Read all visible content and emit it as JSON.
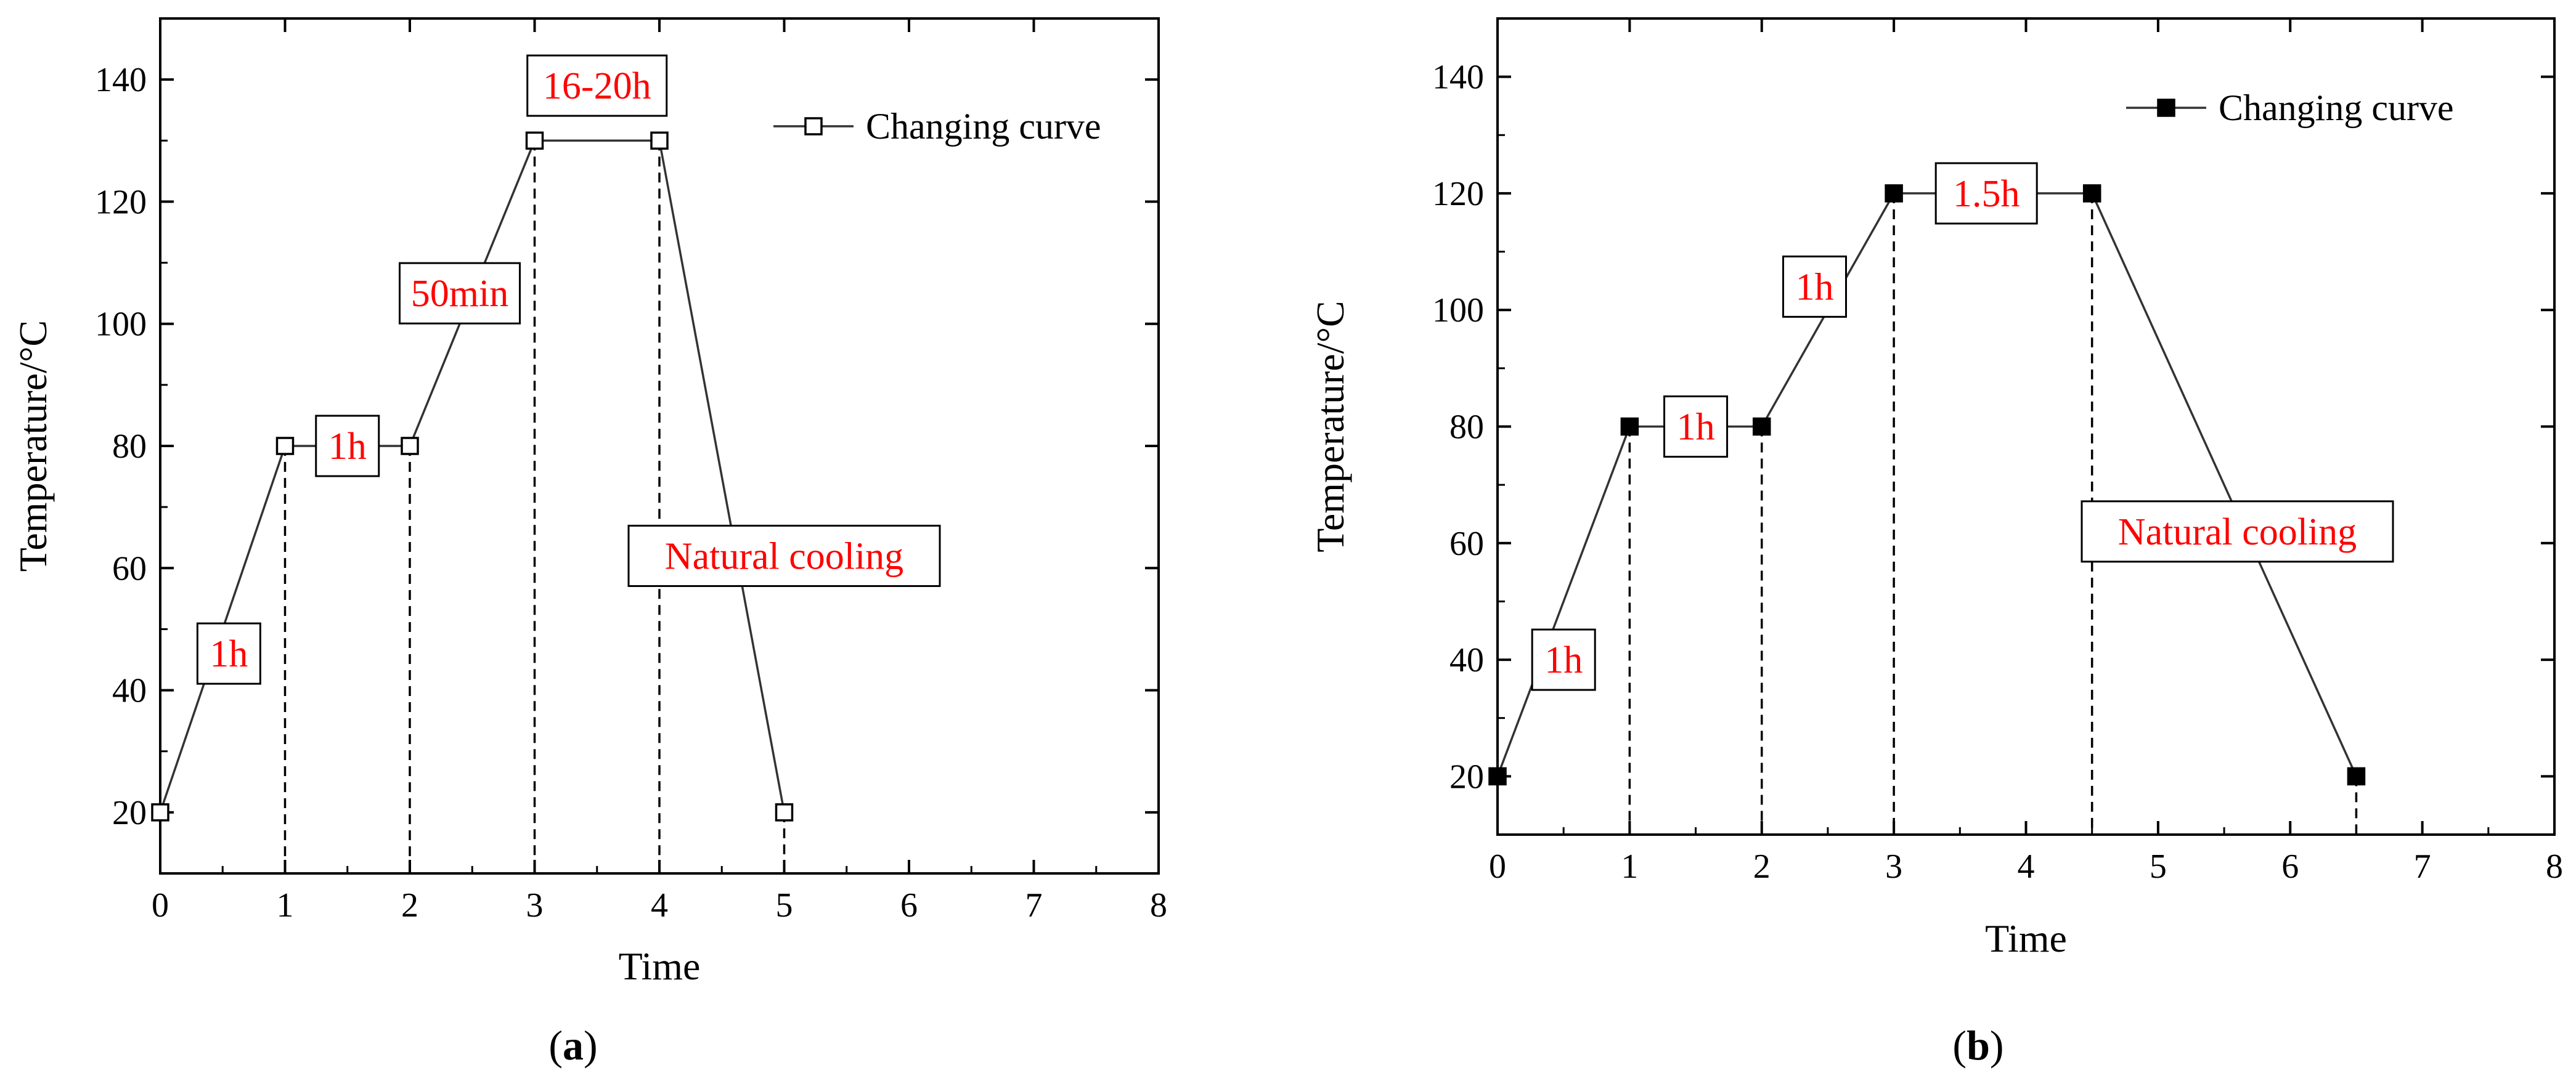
{
  "colors": {
    "axis": "#000000",
    "curve": "#333333",
    "annotation_text": "#ff0000",
    "annotation_border": "#000000",
    "background": "#ffffff"
  },
  "chart_data": [
    {
      "panel_label": "a",
      "type": "line",
      "title": "",
      "xlabel": "Time",
      "ylabel": "Temperature/°C",
      "xlim": [
        0,
        8
      ],
      "ylim": [
        10,
        150
      ],
      "xticks": [
        0,
        1,
        2,
        3,
        4,
        5,
        6,
        7,
        8
      ],
      "xtick_labels": [
        "0",
        "1",
        "2",
        "3",
        "4",
        "5",
        "6",
        "7",
        "8"
      ],
      "yticks": [
        20,
        40,
        60,
        80,
        100,
        120,
        140
      ],
      "ytick_labels": [
        "20",
        "40",
        "60",
        "80",
        "100",
        "120",
        "140"
      ],
      "grid": false,
      "legend": {
        "position": "top-right",
        "entry": "Changing curve",
        "marker": "open-square"
      },
      "series": [
        {
          "name": "Changing curve",
          "marker": "open-square",
          "x": [
            0,
            1,
            2,
            3,
            4,
            5
          ],
          "y": [
            20,
            80,
            80,
            130,
            130,
            20
          ]
        }
      ],
      "drop_lines_x": [
        1,
        2,
        3,
        4,
        5
      ],
      "annotations": [
        {
          "text": "1h",
          "x": 0.55,
          "y": 46
        },
        {
          "text": "1h",
          "x": 1.5,
          "y": 80
        },
        {
          "text": "50min",
          "x": 2.4,
          "y": 105
        },
        {
          "text": "16-20h",
          "x": 3.5,
          "y": 139
        },
        {
          "text": "Natural cooling",
          "x": 5.0,
          "y": 62
        }
      ]
    },
    {
      "panel_label": "b",
      "type": "line",
      "title": "",
      "xlabel": "Time",
      "ylabel": "Temperature/°C",
      "xlim": [
        0,
        8
      ],
      "ylim": [
        10,
        150
      ],
      "xticks": [
        0,
        1,
        2,
        3,
        4,
        5,
        6,
        7,
        8
      ],
      "xtick_labels": [
        "0",
        "1",
        "2",
        "3",
        "4",
        "5",
        "6",
        "7",
        "8"
      ],
      "yticks": [
        20,
        40,
        60,
        80,
        100,
        120,
        140
      ],
      "ytick_labels": [
        "20",
        "40",
        "60",
        "80",
        "100",
        "120",
        "140"
      ],
      "grid": false,
      "legend": {
        "position": "top-right",
        "entry": "Changing curve",
        "marker": "filled-square"
      },
      "series": [
        {
          "name": "Changing curve",
          "marker": "filled-square",
          "x": [
            0,
            1,
            2,
            3,
            4.5,
            6.5
          ],
          "y": [
            20,
            80,
            80,
            120,
            120,
            20
          ]
        }
      ],
      "drop_lines_x": [
        1,
        2,
        3,
        4.5,
        6.5
      ],
      "annotations": [
        {
          "text": "1h",
          "x": 0.5,
          "y": 40
        },
        {
          "text": "1h",
          "x": 1.5,
          "y": 80
        },
        {
          "text": "1h",
          "x": 2.4,
          "y": 104
        },
        {
          "text": "1.5h",
          "x": 3.7,
          "y": 120
        },
        {
          "text": "Natural cooling",
          "x": 5.6,
          "y": 62
        }
      ]
    }
  ]
}
